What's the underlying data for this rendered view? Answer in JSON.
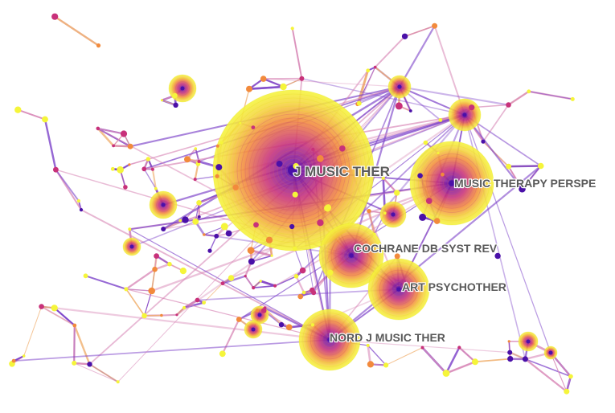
{
  "network": {
    "type": "co-citation network",
    "labeled_nodes": [
      {
        "id": "jmt",
        "label": "J MUSIC THER"
      },
      {
        "id": "mtp",
        "label": "MUSIC THERAPY PERSPE"
      },
      {
        "id": "cochrane",
        "label": "COCHRANE DB SYST REV"
      },
      {
        "id": "artpsy",
        "label": "ART PSYCHOTHER"
      },
      {
        "id": "nordj",
        "label": "NORD J MUSIC THER"
      }
    ],
    "colors": {
      "ring_outer": "#f5f53a",
      "ring_mid": "#f28a3c",
      "ring_inner": "#c8317a",
      "core": "#4a10a8",
      "edge_purple": "#7a3fc8",
      "edge_pink": "#d98ab8",
      "edge_orange": "#f0b070",
      "label": "#5a5a5a"
    }
  }
}
